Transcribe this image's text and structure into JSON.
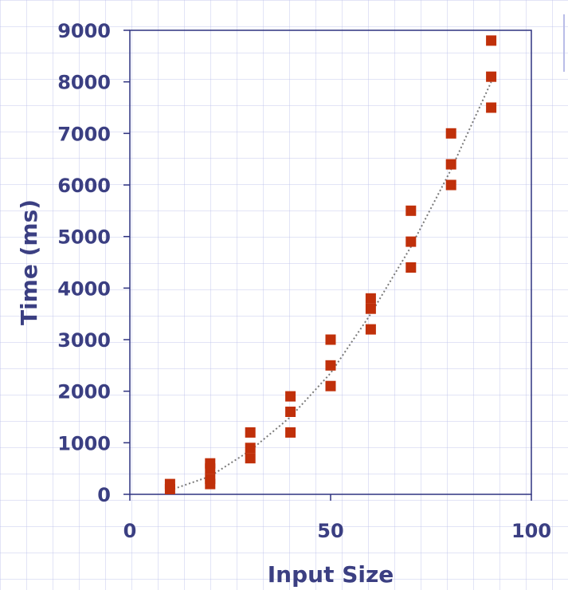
{
  "chart_data": {
    "type": "scatter",
    "xlabel": "Input Size",
    "ylabel": "Time (ms)",
    "xlim": [
      0,
      100
    ],
    "ylim": [
      0,
      9000
    ],
    "x_ticks": [
      "0",
      "50",
      "100"
    ],
    "y_ticks": [
      "0",
      "1000",
      "2000",
      "3000",
      "4000",
      "5000",
      "6000",
      "7000",
      "8000",
      "9000"
    ],
    "grid": true,
    "legend": "none",
    "series": [
      {
        "marker": "square",
        "color": "#c0300a",
        "points": [
          [
            10,
            100
          ],
          [
            10,
            200
          ],
          [
            20,
            200
          ],
          [
            20,
            300
          ],
          [
            20,
            500
          ],
          [
            20,
            600
          ],
          [
            30,
            700
          ],
          [
            30,
            900
          ],
          [
            30,
            1200
          ],
          [
            40,
            1200
          ],
          [
            40,
            1600
          ],
          [
            40,
            1900
          ],
          [
            50,
            2100
          ],
          [
            50,
            2500
          ],
          [
            50,
            3000
          ],
          [
            60,
            3200
          ],
          [
            60,
            3600
          ],
          [
            60,
            3800
          ],
          [
            70,
            4400
          ],
          [
            70,
            4900
          ],
          [
            70,
            5500
          ],
          [
            80,
            6000
          ],
          [
            80,
            6400
          ],
          [
            80,
            7000
          ],
          [
            90,
            7500
          ],
          [
            90,
            8100
          ],
          [
            90,
            8800
          ]
        ]
      }
    ],
    "trendline": {
      "style": "dotted",
      "color": "#7a7a7a",
      "points": [
        [
          10,
          80
        ],
        [
          20,
          350
        ],
        [
          30,
          850
        ],
        [
          40,
          1500
        ],
        [
          50,
          2350
        ],
        [
          60,
          3500
        ],
        [
          70,
          4800
        ],
        [
          80,
          6300
        ],
        [
          90,
          8000
        ]
      ]
    }
  },
  "colors": {
    "axis": "#2f3380",
    "text": "#3b3f82",
    "marker": "#c0300a",
    "trendline": "#7a7a7a"
  }
}
